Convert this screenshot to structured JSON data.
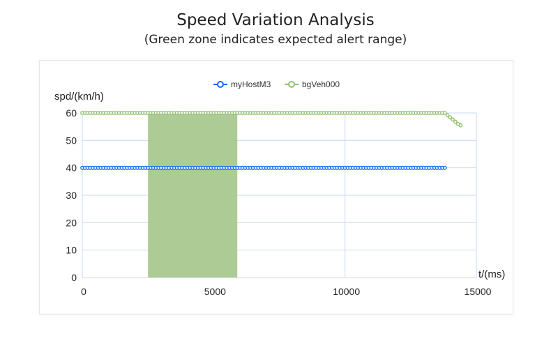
{
  "chart_data": {
    "type": "line",
    "title": "Speed Variation Analysis",
    "subtitle": "(Green zone indicates expected alert range)",
    "xlabel": "t/(ms)",
    "ylabel": "spd/(km/h)",
    "xlim": [
      0,
      15000
    ],
    "ylim": [
      0,
      60
    ],
    "xticks": [
      "0",
      "5000",
      "10000",
      "15000"
    ],
    "yticks": [
      "0",
      "10",
      "20",
      "30",
      "40",
      "50",
      "60"
    ],
    "grid": true,
    "legend_position": "top-center",
    "highlight_zone": {
      "x_from": 2500,
      "x_to": 5900,
      "color": "#a9c98f"
    },
    "series": [
      {
        "name": "myHostM3",
        "color": "#1769f2",
        "x_start": 0,
        "x_step": 100,
        "values": [
          40,
          40,
          40,
          40,
          40,
          40,
          40,
          40,
          40,
          40,
          40,
          40,
          40,
          40,
          40,
          40,
          40,
          40,
          40,
          40,
          40,
          40,
          40,
          40,
          40,
          40,
          40,
          40,
          40,
          40,
          40,
          40,
          40,
          40,
          40,
          40,
          40,
          40,
          40,
          40,
          40,
          40,
          40,
          40,
          40,
          40,
          40,
          40,
          40,
          40,
          40,
          40,
          40,
          40,
          40,
          40,
          40,
          40,
          40,
          40,
          40,
          40,
          40,
          40,
          40,
          40,
          40,
          40,
          40,
          40,
          40,
          40,
          40,
          40,
          40,
          40,
          40,
          40,
          40,
          40,
          40,
          40,
          40,
          40,
          40,
          40,
          40,
          40,
          40,
          40,
          40,
          40,
          40,
          40,
          40,
          40,
          40,
          40,
          40,
          40,
          40,
          40,
          40,
          40,
          40,
          40,
          40,
          40,
          40,
          40,
          40,
          40,
          40,
          40,
          40,
          40,
          40,
          40,
          40,
          40,
          40,
          40,
          40,
          40,
          40,
          40,
          40,
          40,
          40,
          40,
          40,
          40,
          40,
          40,
          40,
          40,
          40,
          40,
          40
        ]
      },
      {
        "name": "bgVeh000",
        "color": "#93c06e",
        "x_start": 0,
        "x_step": 100,
        "values": [
          60,
          60,
          60,
          60,
          60,
          60,
          60,
          60,
          60,
          60,
          60,
          60,
          60,
          60,
          60,
          60,
          60,
          60,
          60,
          60,
          60,
          60,
          60,
          60,
          60,
          60,
          60,
          60,
          60,
          60,
          60,
          60,
          60,
          60,
          60,
          60,
          60,
          60,
          60,
          60,
          60,
          60,
          60,
          60,
          60,
          60,
          60,
          60,
          60,
          60,
          60,
          60,
          60,
          60,
          60,
          60,
          60,
          60,
          60,
          60,
          60,
          60,
          60,
          60,
          60,
          60,
          60,
          60,
          60,
          60,
          60,
          60,
          60,
          60,
          60,
          60,
          60,
          60,
          60,
          60,
          60,
          60,
          60,
          60,
          60,
          60,
          60,
          60,
          60,
          60,
          60,
          60,
          60,
          60,
          60,
          60,
          60,
          60,
          60,
          60,
          60,
          60,
          60,
          60,
          60,
          60,
          60,
          60,
          60,
          60,
          60,
          60,
          60,
          60,
          60,
          60,
          60,
          60,
          60,
          60,
          60,
          60,
          60,
          60,
          60,
          60,
          60,
          60,
          60,
          60,
          60,
          60,
          60,
          60,
          60,
          60,
          60,
          60,
          60,
          59.2,
          58.4,
          57.6,
          56.8,
          56,
          55.5
        ]
      }
    ]
  }
}
